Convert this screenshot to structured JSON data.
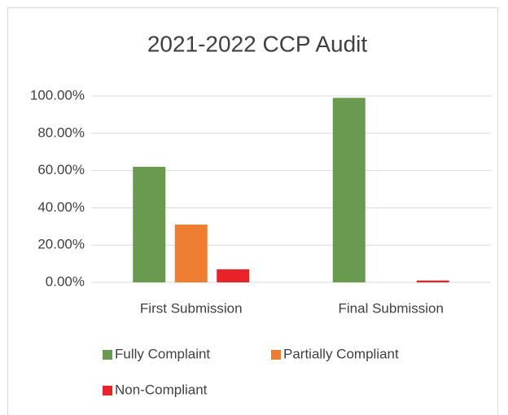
{
  "chart_data": {
    "type": "bar",
    "title": "2021-2022 CCP Audit",
    "categories": [
      "First Submission",
      "Final Submission"
    ],
    "series": [
      {
        "name": "Fully Complaint",
        "color": "#6a9a50",
        "values": [
          62,
          99
        ]
      },
      {
        "name": "Partially Compliant",
        "color": "#ed7d31",
        "values": [
          31,
          0
        ]
      },
      {
        "name": "Non-Compliant",
        "color": "#e8232a",
        "values": [
          7,
          1
        ]
      }
    ],
    "ylim": [
      0,
      100
    ],
    "yticks": [
      {
        "value": 0,
        "label": "0.00%"
      },
      {
        "value": 20,
        "label": "20.00%"
      },
      {
        "value": 40,
        "label": "40.00%"
      },
      {
        "value": 60,
        "label": "60.00%"
      },
      {
        "value": 80,
        "label": "80.00%"
      },
      {
        "value": 100,
        "label": "100.00%"
      }
    ],
    "grid": true,
    "legend": "bottom"
  }
}
